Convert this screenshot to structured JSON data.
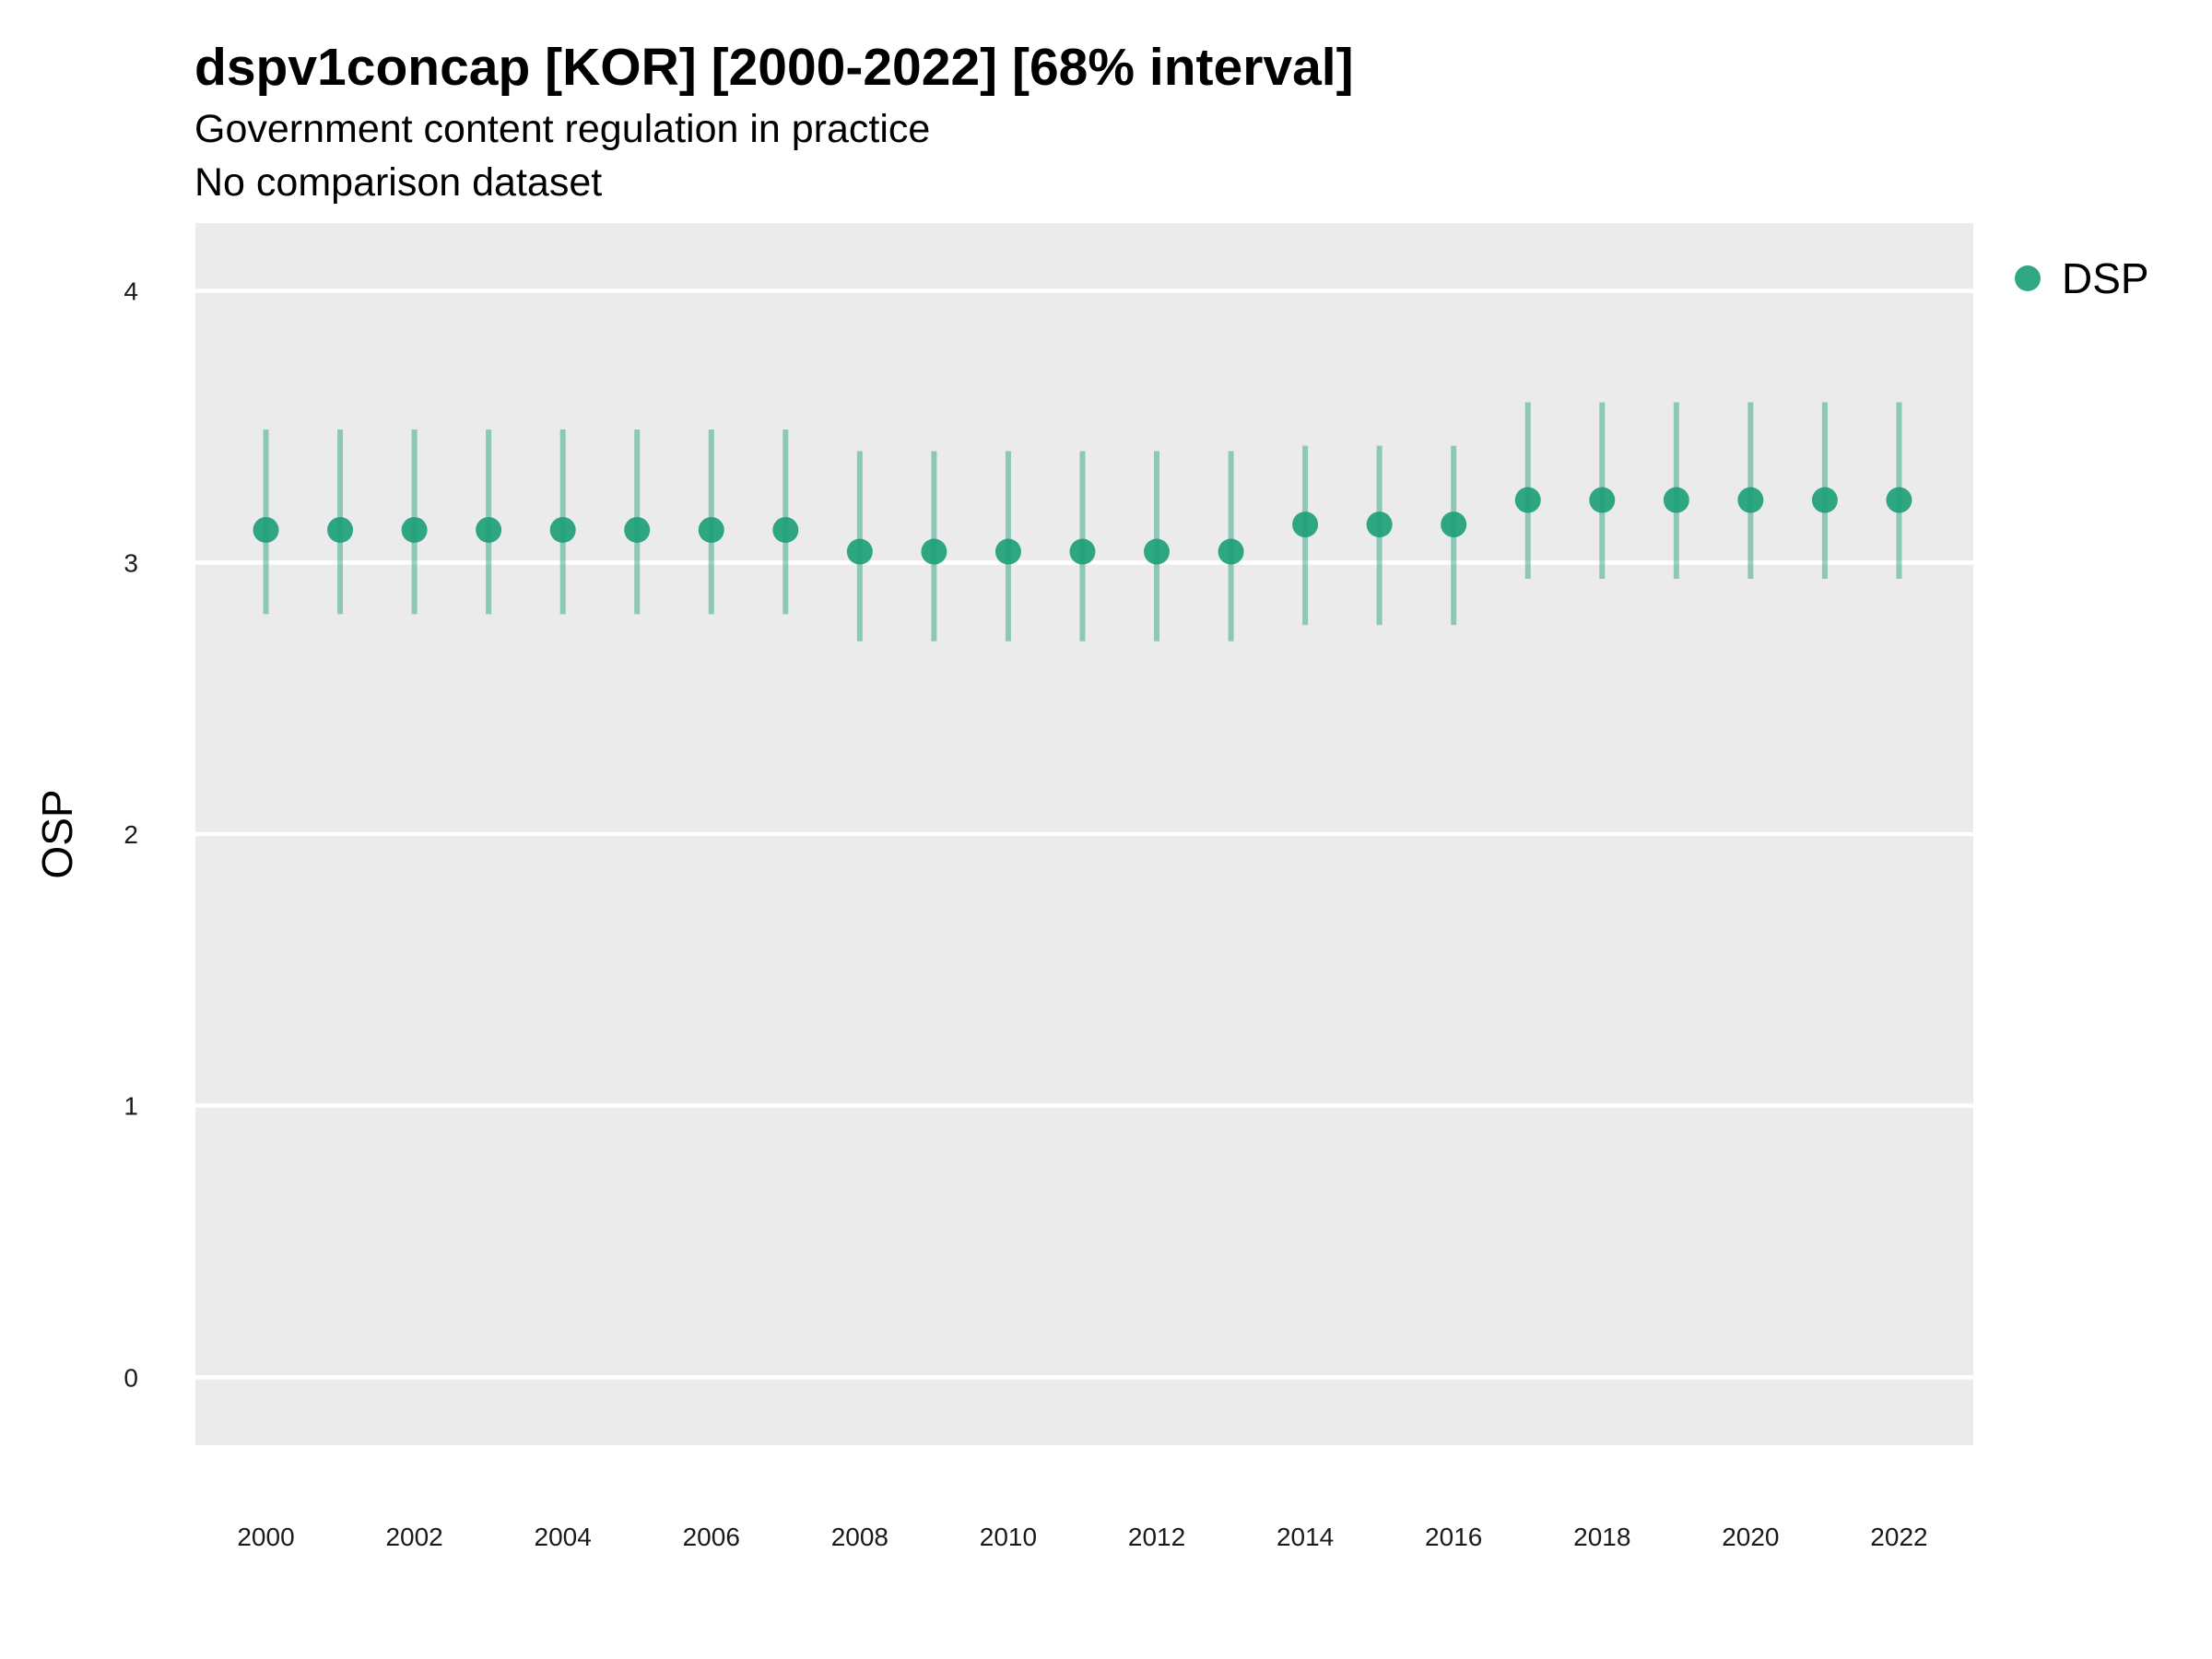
{
  "title": "dspv1concap [KOR] [2000-2022] [68% interval]",
  "subtitle": "Government content regulation in practice",
  "caption": "No comparison dataset",
  "colors": {
    "series": "#1b9e77",
    "panel": "#ebebeb",
    "grid": "#ffffff"
  },
  "chart_data": {
    "type": "scatter",
    "title": "dspv1concap [KOR] [2000-2022] [68% interval]",
    "subtitle": "Government content regulation in practice",
    "caption": "No comparison dataset",
    "ylabel": "OSP",
    "xlabel": "",
    "ylim": [
      -0.25,
      4.25
    ],
    "yticks": [
      0,
      1,
      2,
      3,
      4
    ],
    "xlim": [
      1999.05,
      2023.0
    ],
    "xticks": [
      2000,
      2002,
      2004,
      2006,
      2008,
      2010,
      2012,
      2014,
      2016,
      2018,
      2020,
      2022
    ],
    "grid": true,
    "legend_position": "top-right",
    "series": [
      {
        "name": "DSP",
        "x": [
          2000,
          2001,
          2002,
          2003,
          2004,
          2005,
          2006,
          2007,
          2008,
          2009,
          2010,
          2011,
          2012,
          2013,
          2014,
          2015,
          2016,
          2017,
          2018,
          2019,
          2020,
          2021,
          2022
        ],
        "y": [
          3.12,
          3.12,
          3.12,
          3.12,
          3.12,
          3.12,
          3.12,
          3.12,
          3.04,
          3.04,
          3.04,
          3.04,
          3.04,
          3.04,
          3.14,
          3.14,
          3.14,
          3.23,
          3.23,
          3.23,
          3.23,
          3.23,
          3.23
        ],
        "lower": [
          2.81,
          2.81,
          2.81,
          2.81,
          2.81,
          2.81,
          2.81,
          2.81,
          2.71,
          2.71,
          2.71,
          2.71,
          2.71,
          2.71,
          2.77,
          2.77,
          2.77,
          2.94,
          2.94,
          2.94,
          2.94,
          2.94,
          2.94
        ],
        "upper": [
          3.49,
          3.49,
          3.49,
          3.49,
          3.49,
          3.49,
          3.49,
          3.49,
          3.41,
          3.41,
          3.41,
          3.41,
          3.41,
          3.41,
          3.43,
          3.43,
          3.43,
          3.59,
          3.59,
          3.59,
          3.59,
          3.59,
          3.59
        ]
      }
    ]
  }
}
